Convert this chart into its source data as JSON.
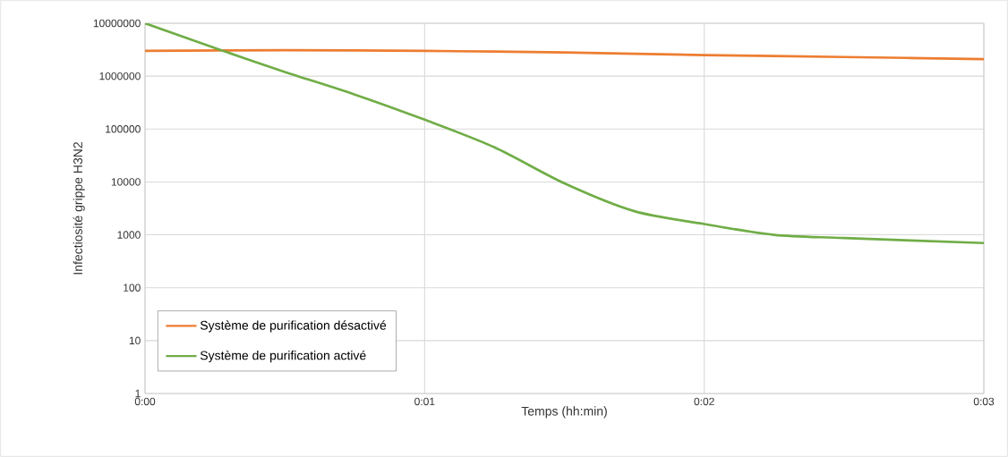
{
  "chart_data": {
    "type": "line",
    "xlabel": "Temps (hh:min)",
    "ylabel": "Infectiosité  grippe H3N2",
    "xlim": [
      0,
      3
    ],
    "xticks": [
      {
        "value": 0,
        "label": "0:00"
      },
      {
        "value": 1,
        "label": "0:01"
      },
      {
        "value": 2,
        "label": "0:02"
      },
      {
        "value": 3,
        "label": "0:03"
      }
    ],
    "ylim": [
      1,
      10000000
    ],
    "yticks": [
      1,
      10,
      100,
      1000,
      10000,
      100000,
      1000000,
      10000000
    ],
    "log": "y",
    "grid": true,
    "legend": "bottom left",
    "marker": "none",
    "line_style": "solid",
    "series": [
      {
        "name": "Système de purification désactivé",
        "color": "#ed7d31",
        "x": [
          0,
          0.5,
          1,
          1.5,
          2,
          2.5,
          3
        ],
        "values": [
          3000000,
          3100000,
          3000000,
          2800000,
          2500000,
          2300000,
          2100000
        ]
      },
      {
        "name": "Système de purification activé",
        "color": "#70ad47",
        "x": [
          0,
          0.28,
          0.5,
          0.75,
          1,
          1.25,
          1.5,
          1.75,
          2,
          2.25,
          2.5,
          3
        ],
        "values": [
          10000000,
          3000000,
          1200000,
          450000,
          150000,
          45000,
          9400,
          2800,
          1600,
          1000,
          870,
          700
        ]
      }
    ]
  }
}
